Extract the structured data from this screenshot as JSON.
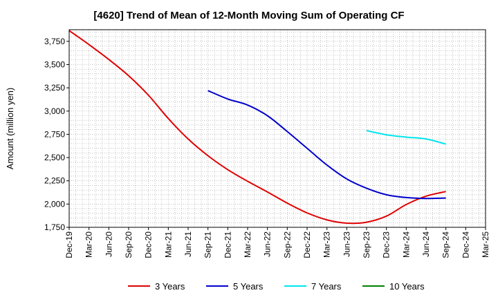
{
  "chart_data": {
    "type": "line",
    "title": "[4620]  Trend of Mean of 12-Month Moving Sum of Operating CF",
    "xlabel": "",
    "ylabel": "Amount (million yen)",
    "ylim": [
      1750,
      3875
    ],
    "yticks": [
      1750,
      2000,
      2250,
      2500,
      2750,
      3000,
      3250,
      3500,
      3750
    ],
    "ytick_labels": [
      "1,750",
      "2,000",
      "2,250",
      "2,500",
      "2,750",
      "3,000",
      "3,250",
      "3,500",
      "3,750"
    ],
    "x_tick_labels": [
      "Dec-19",
      "Mar-20",
      "Jun-20",
      "Sep-20",
      "Dec-20",
      "Mar-21",
      "Jun-21",
      "Sep-21",
      "Dec-21",
      "Mar-22",
      "Jun-22",
      "Sep-22",
      "Dec-22",
      "Mar-23",
      "Jun-23",
      "Sep-23",
      "Dec-23",
      "Mar-24",
      "Jun-24",
      "Sep-24",
      "Dec-24",
      "Mar-25"
    ],
    "x_quarter_count": 21,
    "grid": true,
    "legend_position": "bottom",
    "series": [
      {
        "name": "3 Years",
        "color": "#e00000",
        "points": [
          [
            0,
            3865
          ],
          [
            1,
            3715
          ],
          [
            2,
            3555
          ],
          [
            3,
            3380
          ],
          [
            4,
            3170
          ],
          [
            5,
            2920
          ],
          [
            6,
            2700
          ],
          [
            7,
            2520
          ],
          [
            8,
            2370
          ],
          [
            9,
            2245
          ],
          [
            10,
            2130
          ],
          [
            11,
            2010
          ],
          [
            12,
            1905
          ],
          [
            13,
            1830
          ],
          [
            14,
            1795
          ],
          [
            15,
            1805
          ],
          [
            16,
            1870
          ],
          [
            17,
            1995
          ],
          [
            18,
            2085
          ],
          [
            19,
            2135
          ]
        ]
      },
      {
        "name": "5 Years",
        "color": "#0000cc",
        "points": [
          [
            7,
            3220
          ],
          [
            8,
            3130
          ],
          [
            9,
            3065
          ],
          [
            10,
            2950
          ],
          [
            11,
            2780
          ],
          [
            12,
            2600
          ],
          [
            13,
            2420
          ],
          [
            14,
            2270
          ],
          [
            15,
            2170
          ],
          [
            16,
            2100
          ],
          [
            17,
            2070
          ],
          [
            18,
            2060
          ],
          [
            19,
            2065
          ]
        ]
      },
      {
        "name": "7 Years",
        "color": "#00e5ee",
        "points": [
          [
            15,
            2790
          ],
          [
            16,
            2745
          ],
          [
            17,
            2720
          ],
          [
            18,
            2700
          ],
          [
            19,
            2645
          ]
        ]
      },
      {
        "name": "10 Years",
        "color": "#008000",
        "points": []
      }
    ]
  }
}
